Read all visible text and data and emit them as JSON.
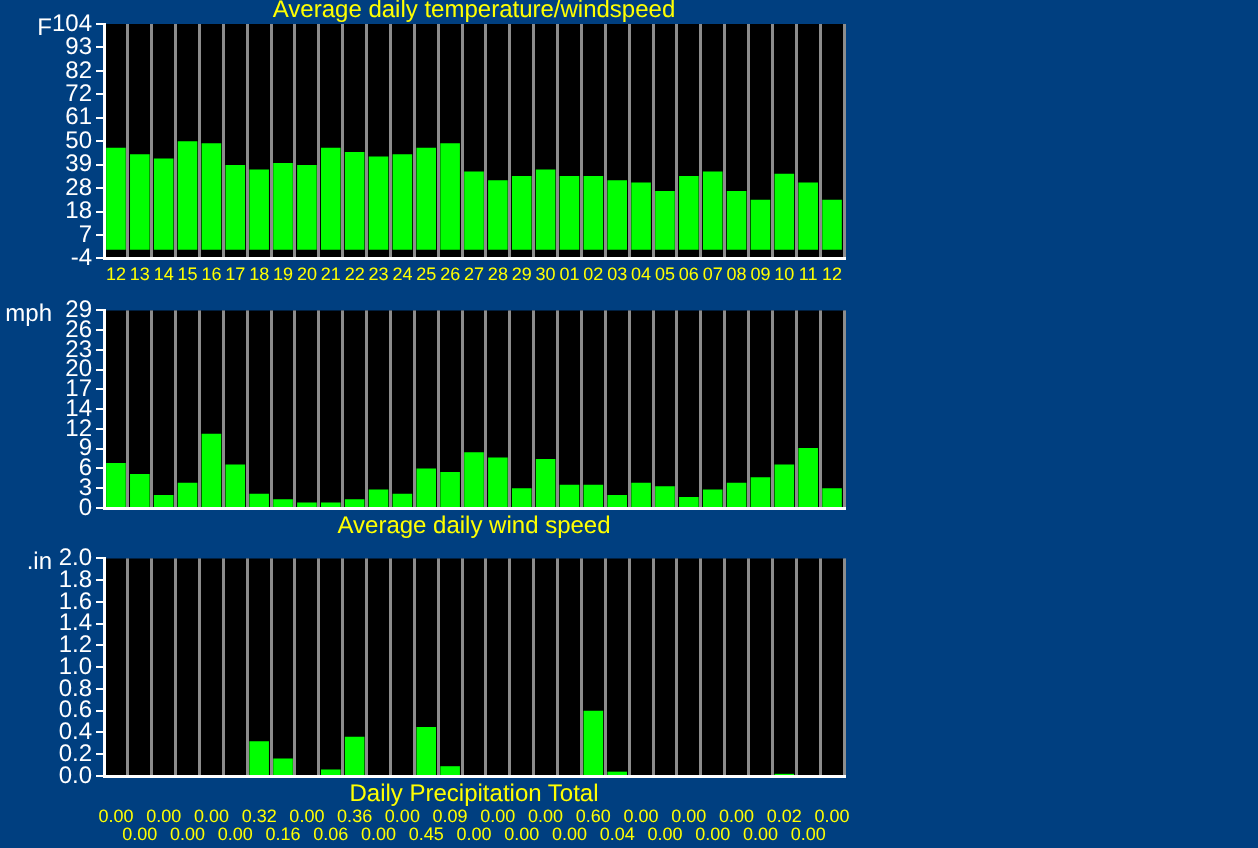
{
  "chart_data": [
    {
      "type": "bar",
      "title": "Average daily temperature/windspeed",
      "ylabel": "F",
      "categories": [
        "12",
        "13",
        "14",
        "15",
        "16",
        "17",
        "18",
        "19",
        "20",
        "21",
        "22",
        "23",
        "24",
        "25",
        "26",
        "27",
        "28",
        "29",
        "30",
        "01",
        "02",
        "03",
        "04",
        "05",
        "06",
        "07",
        "08",
        "09",
        "10",
        "11",
        "12"
      ],
      "values": [
        47,
        44,
        42,
        50,
        49,
        39,
        37,
        40,
        39,
        47,
        45,
        43,
        44,
        47,
        49,
        36,
        32,
        34,
        37,
        34,
        34,
        32,
        31,
        27,
        34,
        36,
        27,
        23,
        35,
        31,
        23
      ],
      "color": "#00ff00",
      "ylim": [
        -4,
        104
      ],
      "yticks": [
        -4,
        {
          "value": 6.8,
          "label": "7"
        },
        {
          "value": 17.6,
          "label": "18"
        },
        {
          "value": 28.4,
          "label": "28"
        },
        {
          "value": 39.2,
          "label": "39"
        },
        50,
        {
          "value": 60.8,
          "label": "61"
        },
        {
          "value": 71.6,
          "label": "72"
        },
        {
          "value": 82.4,
          "label": "82"
        },
        {
          "value": 93.2,
          "label": "93"
        },
        104
      ],
      "grid": "x",
      "legend": false
    },
    {
      "type": "bar",
      "title": "Average daily wind speed",
      "ylabel": "mph",
      "categories": [
        "12",
        "13",
        "14",
        "15",
        "16",
        "17",
        "18",
        "19",
        "20",
        "21",
        "22",
        "23",
        "24",
        "25",
        "26",
        "27",
        "28",
        "29",
        "30",
        "01",
        "02",
        "03",
        "04",
        "05",
        "06",
        "07",
        "08",
        "09",
        "10",
        "11",
        "12"
      ],
      "values": [
        6.6,
        5.0,
        1.9,
        3.7,
        10.9,
        6.4,
        2.1,
        1.3,
        0.8,
        0.8,
        1.3,
        2.7,
        2.1,
        5.8,
        5.3,
        8.2,
        7.4,
        2.9,
        7.2,
        3.4,
        3.4,
        1.9,
        3.7,
        3.2,
        1.6,
        2.7,
        3.7,
        4.5,
        6.4,
        8.8,
        2.9
      ],
      "color": "#00ff00",
      "ylim": [
        0,
        29
      ],
      "yticks": [
        0,
        {
          "value": 2.9,
          "label": "3"
        },
        {
          "value": 5.8,
          "label": "6"
        },
        {
          "value": 8.7,
          "label": "9"
        },
        {
          "value": 11.6,
          "label": "12"
        },
        {
          "value": 14.5,
          "label": "14"
        },
        {
          "value": 17.4,
          "label": "17"
        },
        {
          "value": 20.3,
          "label": "20"
        },
        {
          "value": 23.2,
          "label": "23"
        },
        {
          "value": 26.1,
          "label": "26"
        },
        29
      ],
      "grid": "x",
      "legend": false,
      "tick_labels": "y"
    },
    {
      "type": "bar",
      "title": "Daily Precipitation Total",
      "ylabel": ".in",
      "categories": [
        "12",
        "13",
        "14",
        "15",
        "16",
        "17",
        "18",
        "19",
        "20",
        "21",
        "22",
        "23",
        "24",
        "25",
        "26",
        "27",
        "28",
        "29",
        "30",
        "01",
        "02",
        "03",
        "04",
        "05",
        "06",
        "07",
        "08",
        "09",
        "10",
        "11",
        "12"
      ],
      "values": [
        0,
        0,
        0,
        0,
        0,
        0,
        0.32,
        0.16,
        0,
        0.06,
        0.36,
        0,
        0,
        0.45,
        0.09,
        0,
        0,
        0,
        0,
        0,
        0.6,
        0.04,
        0,
        0,
        0,
        0,
        0,
        0,
        0.02,
        0,
        0
      ],
      "value_labels": [
        "0.00",
        "0.00",
        "0.00",
        "0.00",
        "0.00",
        "0.00",
        "0.32",
        "0.16",
        "0.00",
        "0.06",
        "0.36",
        "0.00",
        "0.00",
        "0.45",
        "0.09",
        "0.00",
        "0.00",
        "0.00",
        "0.00",
        "0.00",
        "0.60",
        "0.04",
        "0.00",
        "0.00",
        "0.00",
        "0.00",
        "0.00",
        "0.00",
        "0.02",
        "0.00",
        "0.00"
      ],
      "color": "#00ff00",
      "ylim": [
        0,
        2
      ],
      "yticks": [
        {
          "value": 0,
          "label": "0.0"
        },
        {
          "value": 0.2,
          "label": "0.2"
        },
        {
          "value": 0.4,
          "label": "0.4"
        },
        {
          "value": 0.6,
          "label": "0.6"
        },
        {
          "value": 0.8,
          "label": "0.8"
        },
        {
          "value": 1,
          "label": "1.0"
        },
        {
          "value": 1.2,
          "label": "1.2"
        },
        {
          "value": 1.4,
          "label": "1.4"
        },
        {
          "value": 1.6,
          "label": "1.6"
        },
        {
          "value": 1.8,
          "label": "1.8"
        },
        {
          "value": 2,
          "label": "2.0"
        }
      ],
      "grid": "x",
      "legend": false,
      "tick_labels": "y"
    }
  ]
}
